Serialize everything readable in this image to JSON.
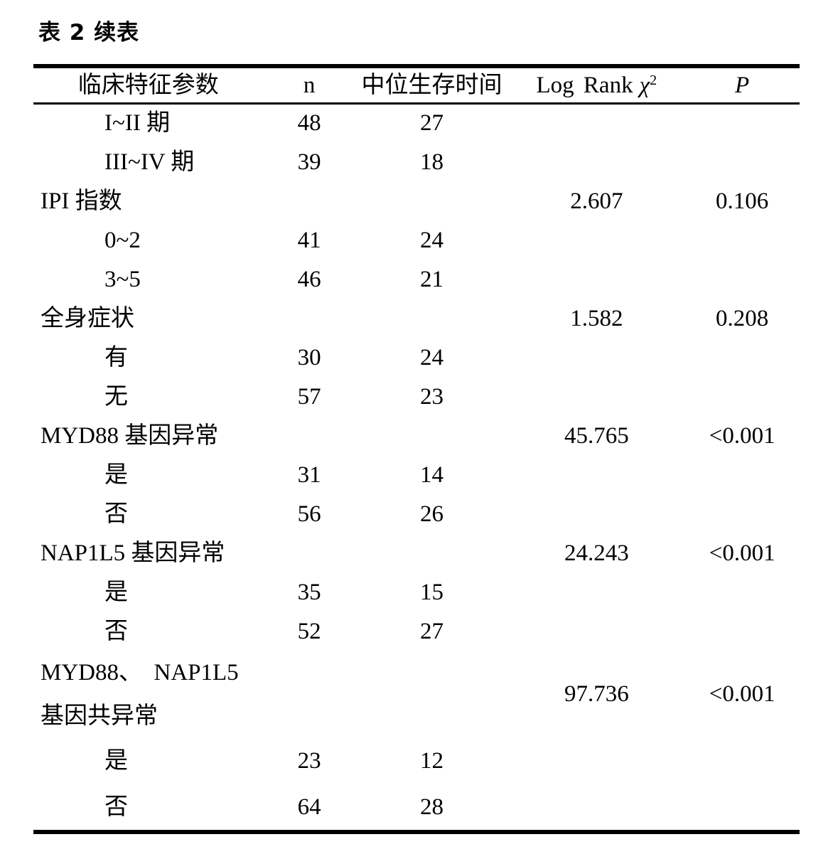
{
  "title": "表 2 续表",
  "table": {
    "header": {
      "param": "临床特征参数",
      "n": "n",
      "median": "中位生存时间",
      "logrank_prefix": "Log Rank",
      "logrank_chi": "χ",
      "logrank_sup": "2",
      "p": "P"
    },
    "rows": [
      {
        "label": "I~II 期",
        "indent": true,
        "n": "48",
        "median": "27",
        "logrank": "",
        "p": ""
      },
      {
        "label": "III~IV 期",
        "indent": true,
        "n": "39",
        "median": "18",
        "logrank": "",
        "p": ""
      },
      {
        "label": "IPI 指数",
        "indent": false,
        "n": "",
        "median": "",
        "logrank": "2.607",
        "p": "0.106"
      },
      {
        "label": "0~2",
        "indent": true,
        "n": "41",
        "median": "24",
        "logrank": "",
        "p": ""
      },
      {
        "label": "3~5",
        "indent": true,
        "n": "46",
        "median": "21",
        "logrank": "",
        "p": ""
      },
      {
        "label": "全身症状",
        "indent": false,
        "n": "",
        "median": "",
        "logrank": "1.582",
        "p": "0.208"
      },
      {
        "label": "有",
        "indent": true,
        "n": "30",
        "median": "24",
        "logrank": "",
        "p": ""
      },
      {
        "label": "无",
        "indent": true,
        "n": "57",
        "median": "23",
        "logrank": "",
        "p": ""
      },
      {
        "label": "MYD88 基因异常",
        "indent": false,
        "n": "",
        "median": "",
        "logrank": "45.765",
        "p": "<0.001"
      },
      {
        "label": "是",
        "indent": true,
        "n": "31",
        "median": "14",
        "logrank": "",
        "p": ""
      },
      {
        "label": "否",
        "indent": true,
        "n": "56",
        "median": "26",
        "logrank": "",
        "p": ""
      },
      {
        "label": "NAP1L5 基因异常",
        "indent": false,
        "n": "",
        "median": "",
        "logrank": "24.243",
        "p": "<0.001"
      },
      {
        "label": "是",
        "indent": true,
        "n": "35",
        "median": "15",
        "logrank": "",
        "p": ""
      },
      {
        "label": "否",
        "indent": true,
        "n": "52",
        "median": "27",
        "logrank": "",
        "p": ""
      },
      {
        "label_lines": [
          "MYD88、　NAP1L5",
          "基因共异常"
        ],
        "indent": false,
        "tall": true,
        "n": "",
        "median": "",
        "logrank": "97.736",
        "p": "<0.001"
      },
      {
        "label": "是",
        "indent": true,
        "spaced": true,
        "n": "23",
        "median": "12",
        "logrank": "",
        "p": ""
      },
      {
        "label": "否",
        "indent": true,
        "spaced": true,
        "n": "64",
        "median": "28",
        "logrank": "",
        "p": ""
      }
    ]
  }
}
